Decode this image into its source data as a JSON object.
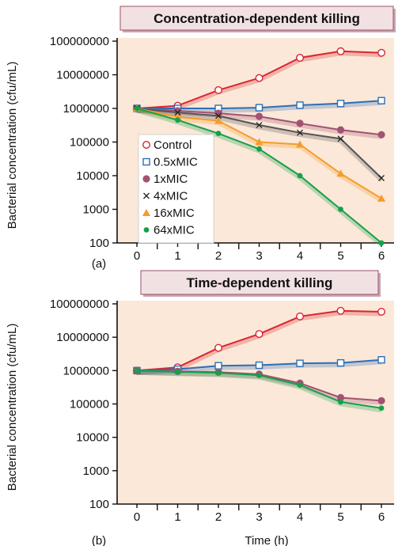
{
  "colors": {
    "plot_bg": "#fbe8d9",
    "title_box_bg": "#f2e1e3",
    "title_box_border": "#9a5066",
    "title_box_shadow": "#c9a9b2",
    "axis": "#111111",
    "Control": "#d9262e",
    "0.5xMIC": "#2d6fb5",
    "1xMIC": "#a25272",
    "4xMIC": "#555555",
    "16xMIC": "#f59c2a",
    "64xMIC": "#15a04a"
  },
  "chart_data": [
    {
      "type": "line",
      "panel_label": "(a)",
      "title": "Concentration-dependent killing",
      "xlabel": "",
      "ylabel": "Bacterial concentration (cfu/mL)",
      "yscale": "log",
      "ylim": [
        100,
        100000000
      ],
      "xlim": [
        0,
        6
      ],
      "x": [
        0,
        1,
        2,
        3,
        4,
        5,
        6
      ],
      "x_tick_labels": [
        "0",
        "1",
        "2",
        "3",
        "4",
        "5",
        "6"
      ],
      "y_tick_labels": [
        "100",
        "1000",
        "10000",
        "100000",
        "1000000",
        "10000000",
        "100000000"
      ],
      "grid": false,
      "legend_position": "bottom-left",
      "series": [
        {
          "name": "Control",
          "marker": "circle-open",
          "values": [
            1000000,
            1200000,
            3500000,
            8000000,
            32000000,
            50000000,
            45000000
          ]
        },
        {
          "name": "0.5xMIC",
          "marker": "square-open",
          "values": [
            1000000,
            1000000,
            1000000,
            1050000,
            1250000,
            1400000,
            1700000
          ]
        },
        {
          "name": "1xMIC",
          "marker": "circle-filled",
          "values": [
            1000000,
            850000,
            720000,
            580000,
            360000,
            230000,
            165000
          ]
        },
        {
          "name": "4xMIC",
          "marker": "x",
          "values": [
            1000000,
            750000,
            600000,
            320000,
            190000,
            125000,
            8500
          ]
        },
        {
          "name": "16xMIC",
          "marker": "triangle-filled",
          "values": [
            1000000,
            560000,
            430000,
            100000,
            85000,
            11500,
            2100
          ]
        },
        {
          "name": "64xMIC",
          "marker": "dot-filled",
          "values": [
            1000000,
            450000,
            180000,
            62000,
            10000,
            1000,
            100
          ]
        }
      ]
    },
    {
      "type": "line",
      "panel_label": "(b)",
      "title": "Time-dependent killing",
      "xlabel": "Time (h)",
      "ylabel": "Bacterial concentration (cfu/mL)",
      "yscale": "log",
      "ylim": [
        100,
        100000000
      ],
      "xlim": [
        0,
        6
      ],
      "x": [
        0,
        1,
        2,
        3,
        4,
        5,
        6
      ],
      "x_tick_labels": [
        "0",
        "1",
        "2",
        "3",
        "4",
        "5",
        "6"
      ],
      "y_tick_labels": [
        "100",
        "1000",
        "10000",
        "100000",
        "1000000",
        "10000000",
        "100000000"
      ],
      "grid": false,
      "series": [
        {
          "name": "Control",
          "marker": "circle-open",
          "values": [
            1000000,
            1250000,
            4800000,
            12500000,
            42000000,
            62000000,
            58000000
          ]
        },
        {
          "name": "0.5xMIC",
          "marker": "square-open",
          "values": [
            1000000,
            1100000,
            1400000,
            1450000,
            1650000,
            1700000,
            2100000
          ]
        },
        {
          "name": "1xMIC",
          "marker": "circle-filled",
          "values": [
            1000000,
            950000,
            900000,
            780000,
            420000,
            155000,
            125000
          ]
        },
        {
          "name": "64xMIC",
          "marker": "dot-filled",
          "values": [
            1000000,
            920000,
            860000,
            720000,
            370000,
            115000,
            75000
          ]
        }
      ]
    }
  ]
}
